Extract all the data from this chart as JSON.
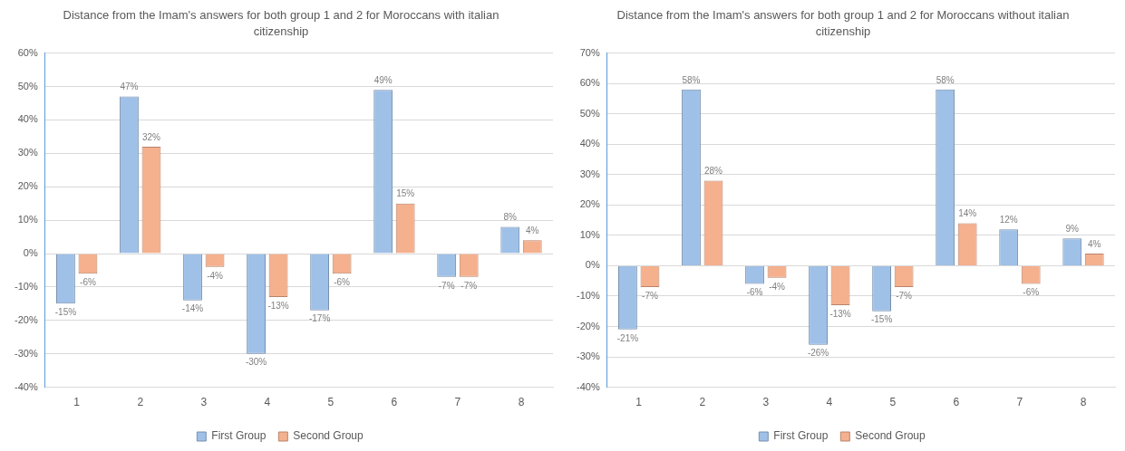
{
  "chart_data": [
    {
      "type": "bar",
      "title": "Distance from the Imam's answers for both group 1 and 2 for Moroccans with italian citizenship",
      "categories": [
        "1",
        "2",
        "3",
        "4",
        "5",
        "6",
        "7",
        "8"
      ],
      "series": [
        {
          "name": "First Group",
          "color": "#9fc0e7",
          "values": [
            -15,
            47,
            -14,
            -30,
            -17,
            49,
            -7,
            8
          ],
          "value_labels": [
            "-15%",
            "47%",
            "-14%",
            "-30%",
            "-17%",
            "49%",
            "-7%",
            "8%"
          ]
        },
        {
          "name": "Second Group",
          "color": "#f5b08e",
          "values": [
            -6,
            32,
            -4,
            -13,
            -6,
            15,
            -7,
            4
          ],
          "value_labels": [
            "-6%",
            "32%",
            "-4%",
            "-13%",
            "-6%",
            "15%",
            "-7%",
            "4%"
          ]
        }
      ],
      "ylim": [
        -40,
        60
      ],
      "yticks": [
        {
          "value": -40,
          "label": "-40%"
        },
        {
          "value": -30,
          "label": "-30%"
        },
        {
          "value": -20,
          "label": "-20%"
        },
        {
          "value": -10,
          "label": "-10%"
        },
        {
          "value": 0,
          "label": "0%"
        },
        {
          "value": 10,
          "label": "10%"
        },
        {
          "value": 20,
          "label": "20%"
        },
        {
          "value": 30,
          "label": "30%"
        },
        {
          "value": 40,
          "label": "40%"
        },
        {
          "value": 50,
          "label": "50%"
        },
        {
          "value": 60,
          "label": "60%"
        }
      ],
      "grid": "y",
      "legend": "bottom"
    },
    {
      "type": "bar",
      "title": "Distance from the Imam's answers for both group 1 and 2 for Moroccans  without italian citizenship",
      "categories": [
        "1",
        "2",
        "3",
        "4",
        "5",
        "6",
        "7",
        "8"
      ],
      "series": [
        {
          "name": "First Group",
          "color": "#9fc0e7",
          "values": [
            -21,
            58,
            -6,
            -26,
            -15,
            58,
            12,
            9
          ],
          "value_labels": [
            "-21%",
            "58%",
            "-6%",
            "-26%",
            "-15%",
            "58%",
            "12%",
            "9%"
          ]
        },
        {
          "name": "Second Group",
          "color": "#f5b08e",
          "values": [
            -7,
            28,
            -4,
            -13,
            -7,
            14,
            -6,
            4
          ],
          "value_labels": [
            "-7%",
            "28%",
            "-4%",
            "-13%",
            "-7%",
            "14%",
            "-6%",
            "4%"
          ]
        }
      ],
      "ylim": [
        -40,
        70
      ],
      "yticks": [
        {
          "value": -40,
          "label": "-40%"
        },
        {
          "value": -30,
          "label": "-30%"
        },
        {
          "value": -20,
          "label": "-20%"
        },
        {
          "value": -10,
          "label": "-10%"
        },
        {
          "value": 0,
          "label": "0%"
        },
        {
          "value": 10,
          "label": "10%"
        },
        {
          "value": 20,
          "label": "20%"
        },
        {
          "value": 30,
          "label": "30%"
        },
        {
          "value": 40,
          "label": "40%"
        },
        {
          "value": 50,
          "label": "50%"
        },
        {
          "value": 60,
          "label": "60%"
        },
        {
          "value": 70,
          "label": "70%"
        }
      ],
      "grid": "y",
      "legend": "bottom"
    }
  ]
}
